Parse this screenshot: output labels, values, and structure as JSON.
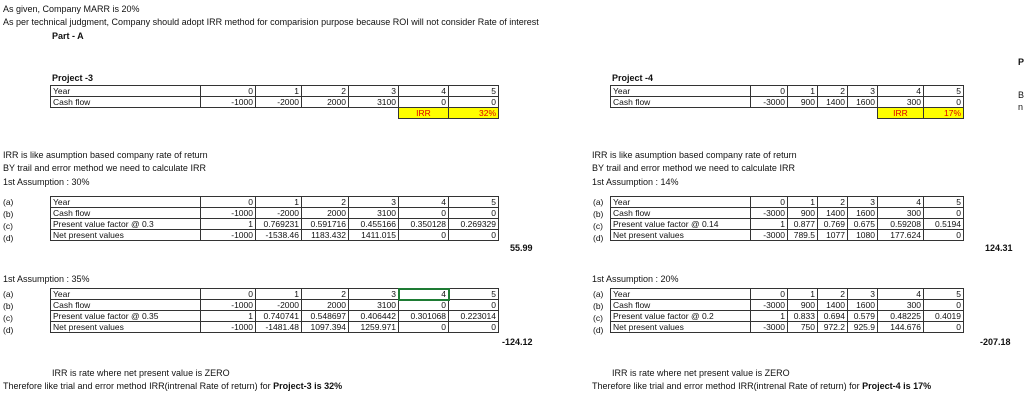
{
  "header": {
    "line1": "As given, Company MARR is 20%",
    "line2": "As per technical judgment, Company should adopt IRR method for comparision purpose because ROI will not consider Rate of interest",
    "part": "Part - A"
  },
  "edge": {
    "top": "P",
    "mid1": "B",
    "mid2": "n"
  },
  "p3": {
    "title": "Project -3",
    "year_label": "Year",
    "years": [
      "0",
      "1",
      "2",
      "3",
      "4",
      "5"
    ],
    "cf_label": "Cash flow",
    "cf": [
      "-1000",
      "-2000",
      "2000",
      "3100",
      "0",
      "0"
    ],
    "irr_label": "IRR",
    "irr_value": "32%",
    "note1": "IRR is like asumption based company rate of return",
    "note2": "BY trail and error method we need to calculate IRR",
    "a1": {
      "heading": "1st Assumption : 30%",
      "letters": [
        "(a)",
        "(b)",
        "(c)",
        "(d)"
      ],
      "labels": [
        "Year",
        "Cash flow",
        "Present value factor @ 0.3",
        "Net present values"
      ],
      "year": [
        "0",
        "1",
        "2",
        "3",
        "4",
        "5"
      ],
      "cf": [
        "-1000",
        "-2000",
        "2000",
        "3100",
        "0",
        "0"
      ],
      "pvf": [
        "1",
        "0.769231",
        "0.591716",
        "0.455166",
        "0.350128",
        "0.269329"
      ],
      "npv": [
        "-1000",
        "-1538.46",
        "1183.432",
        "1411.015",
        "0",
        "0"
      ],
      "total": "55.99"
    },
    "a2": {
      "heading": "1st Assumption : 35%",
      "letters": [
        "(a)",
        "(b)",
        "(c)",
        "(d)"
      ],
      "labels": [
        "Year",
        "Cash flow",
        "Present value factor @ 0.35",
        "Net present values"
      ],
      "year": [
        "0",
        "1",
        "2",
        "3",
        "4",
        "5"
      ],
      "cf": [
        "-1000",
        "-2000",
        "2000",
        "3100",
        "0",
        "0"
      ],
      "pvf": [
        "1",
        "0.740741",
        "0.548697",
        "0.406442",
        "0.301068",
        "0.223014"
      ],
      "npv": [
        "-1000",
        "-1481.48",
        "1097.394",
        "1259.971",
        "0",
        "0"
      ],
      "total": "-124.12"
    },
    "concl1": "IRR is rate where net present value is ZERO",
    "concl2_a": "Therefore like trial and error method IRR(intrenal Rate of return) for ",
    "concl2_b": "Project-3 is 32%"
  },
  "p4": {
    "title": "Project -4",
    "year_label": "Year",
    "years": [
      "0",
      "1",
      "2",
      "3",
      "4",
      "5"
    ],
    "cf_label": "Cash flow",
    "cf": [
      "-3000",
      "900",
      "1400",
      "1600",
      "300",
      "0"
    ],
    "irr_label": "IRR",
    "irr_value": "17%",
    "note1": "IRR is like asumption based company rate of return",
    "note2": "BY trail and error method we need to calculate IRR",
    "a1": {
      "heading": "1st Assumption : 14%",
      "letters": [
        "(a)",
        "(b)",
        "(c)",
        "(d)"
      ],
      "labels": [
        "Year",
        "Cash flow",
        "Present value factor @ 0.14",
        "Net present values"
      ],
      "year": [
        "0",
        "1",
        "2",
        "3",
        "4",
        "5"
      ],
      "cf": [
        "-3000",
        "900",
        "1400",
        "1600",
        "300",
        "0"
      ],
      "pvf": [
        "1",
        "0.877",
        "0.769",
        "0.675",
        "0.59208",
        "0.5194"
      ],
      "npv": [
        "-3000",
        "789.5",
        "1077",
        "1080",
        "177.624",
        "0"
      ],
      "total": "124.31"
    },
    "a2": {
      "heading": "1st Assumption : 20%",
      "letters": [
        "(a)",
        "(b)",
        "(c)",
        "(d)"
      ],
      "labels": [
        "Year",
        "Cash flow",
        "Present value factor @ 0.2",
        "Net present values"
      ],
      "year": [
        "0",
        "1",
        "2",
        "3",
        "4",
        "5"
      ],
      "cf": [
        "-3000",
        "900",
        "1400",
        "1600",
        "300",
        "0"
      ],
      "pvf": [
        "1",
        "0.833",
        "0.694",
        "0.579",
        "0.48225",
        "0.4019"
      ],
      "npv": [
        "-3000",
        "750",
        "972.2",
        "925.9",
        "144.676",
        "0"
      ],
      "total": "-207.18"
    },
    "concl1": "IRR is rate where net present value is ZERO",
    "concl2_a": "Therefore like trial and error method IRR(intrenal Rate of return) for ",
    "concl2_b": "Project-4 is 17%"
  }
}
